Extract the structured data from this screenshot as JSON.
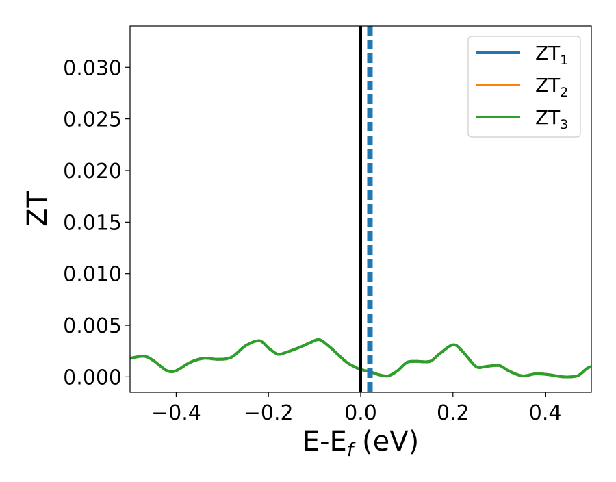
{
  "chart_data": {
    "type": "line",
    "xlabel": "E-E",
    "xlabel_sub": "f",
    "xlabel_unit": " (eV)",
    "ylabel": "ZT",
    "xlim": [
      -0.5,
      0.5
    ],
    "ylim": [
      -0.0015,
      0.034
    ],
    "xticks": [
      -0.4,
      -0.2,
      0.0,
      0.2,
      0.4
    ],
    "xtick_labels": [
      "−0.4",
      "−0.2",
      "0.0",
      "0.2",
      "0.4"
    ],
    "yticks": [
      0.0,
      0.005,
      0.01,
      0.015,
      0.02,
      0.025,
      0.03
    ],
    "ytick_labels": [
      "0.000",
      "0.005",
      "0.010",
      "0.015",
      "0.020",
      "0.025",
      "0.030"
    ],
    "grid": false,
    "legend_position": "top-right",
    "series": [
      {
        "name": "ZT",
        "name_sub": "1",
        "color": "#1f77b4",
        "x": [
          -0.5,
          -0.47,
          -0.45,
          -0.42,
          -0.4,
          -0.37,
          -0.34,
          -0.31,
          -0.28,
          -0.25,
          -0.22,
          -0.2,
          -0.18,
          -0.16,
          -0.13,
          -0.11,
          -0.09,
          -0.07,
          -0.05,
          -0.03,
          -0.01,
          0.0,
          0.02,
          0.04,
          0.06,
          0.08,
          0.1,
          0.12,
          0.15,
          0.17,
          0.2,
          0.22,
          0.25,
          0.27,
          0.3,
          0.32,
          0.35,
          0.38,
          0.41,
          0.44,
          0.47,
          0.49,
          0.5
        ],
        "values": [
          0.0018,
          0.002,
          0.0016,
          0.0006,
          0.0006,
          0.0014,
          0.0018,
          0.0017,
          0.0019,
          0.003,
          0.0035,
          0.0028,
          0.0022,
          0.0024,
          0.0029,
          0.0033,
          0.0036,
          0.003,
          0.0022,
          0.0014,
          0.0009,
          0.0007,
          0.0005,
          0.0002,
          0.0001,
          0.0006,
          0.0014,
          0.0015,
          0.0015,
          0.0022,
          0.0031,
          0.0025,
          0.001,
          0.001,
          0.0011,
          0.0006,
          0.0001,
          0.0003,
          0.0002,
          0.0,
          0.0001,
          0.0008,
          0.001
        ]
      },
      {
        "name": "ZT",
        "name_sub": "2",
        "color": "#ff7f0e",
        "x": [
          -0.5,
          -0.47,
          -0.45,
          -0.42,
          -0.4,
          -0.37,
          -0.34,
          -0.31,
          -0.28,
          -0.25,
          -0.22,
          -0.2,
          -0.18,
          -0.16,
          -0.13,
          -0.11,
          -0.09,
          -0.07,
          -0.05,
          -0.03,
          -0.01,
          0.0,
          0.02,
          0.04,
          0.06,
          0.08,
          0.1,
          0.12,
          0.15,
          0.17,
          0.2,
          0.22,
          0.25,
          0.27,
          0.3,
          0.32,
          0.35,
          0.38,
          0.41,
          0.44,
          0.47,
          0.49,
          0.5
        ],
        "values": [
          0.0018,
          0.002,
          0.0016,
          0.0006,
          0.0006,
          0.0014,
          0.0018,
          0.0017,
          0.0019,
          0.003,
          0.0035,
          0.0028,
          0.0022,
          0.0024,
          0.0029,
          0.0033,
          0.0036,
          0.003,
          0.0022,
          0.0014,
          0.0009,
          0.0007,
          0.0005,
          0.0002,
          0.0001,
          0.0006,
          0.0014,
          0.0015,
          0.0015,
          0.0022,
          0.0031,
          0.0025,
          0.001,
          0.001,
          0.0011,
          0.0006,
          0.0001,
          0.0003,
          0.0002,
          0.0,
          0.0001,
          0.0008,
          0.001
        ]
      },
      {
        "name": "ZT",
        "name_sub": "3",
        "color": "#2ca02c",
        "x": [
          -0.5,
          -0.47,
          -0.45,
          -0.42,
          -0.4,
          -0.37,
          -0.34,
          -0.31,
          -0.28,
          -0.25,
          -0.22,
          -0.2,
          -0.18,
          -0.16,
          -0.13,
          -0.11,
          -0.09,
          -0.07,
          -0.05,
          -0.03,
          -0.01,
          0.0,
          0.02,
          0.04,
          0.06,
          0.08,
          0.1,
          0.12,
          0.15,
          0.17,
          0.2,
          0.22,
          0.25,
          0.27,
          0.3,
          0.32,
          0.35,
          0.38,
          0.41,
          0.44,
          0.47,
          0.49,
          0.5
        ],
        "values": [
          0.0018,
          0.002,
          0.0016,
          0.0006,
          0.0006,
          0.0014,
          0.0018,
          0.0017,
          0.0019,
          0.003,
          0.0035,
          0.0028,
          0.0022,
          0.0024,
          0.0029,
          0.0033,
          0.0036,
          0.003,
          0.0022,
          0.0014,
          0.0009,
          0.0007,
          0.0005,
          0.0002,
          0.0001,
          0.0006,
          0.0014,
          0.0015,
          0.0015,
          0.0022,
          0.0031,
          0.0025,
          0.001,
          0.001,
          0.0011,
          0.0006,
          0.0001,
          0.0003,
          0.0002,
          0.0,
          0.0001,
          0.0008,
          0.001
        ]
      }
    ],
    "reference_lines": [
      {
        "orientation": "vertical",
        "x": 0.0,
        "color": "#000000",
        "style": "solid"
      },
      {
        "orientation": "vertical",
        "x": 0.02,
        "color": "#1f77b4",
        "style": "dashed"
      }
    ]
  }
}
